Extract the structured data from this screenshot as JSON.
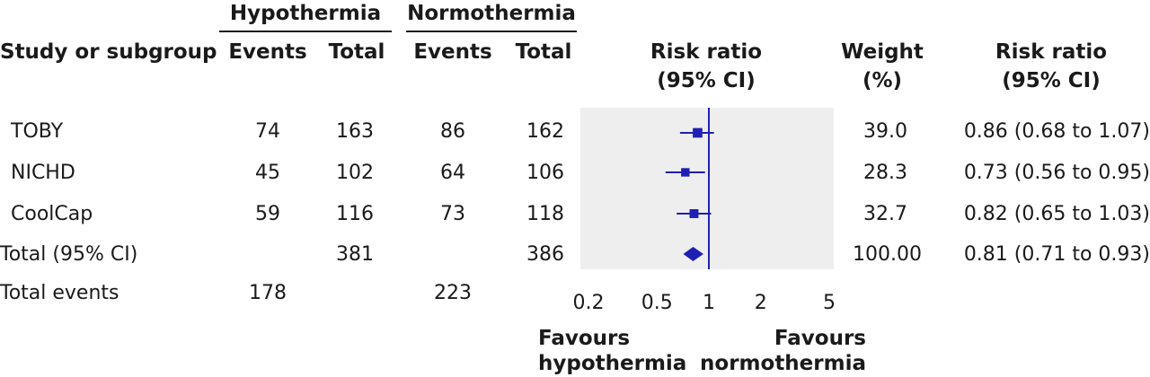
{
  "headers": {
    "group1": "Hypothermia",
    "group2": "Normothermia",
    "study": "Study or subgroup",
    "events1": "Events",
    "total1": "Total",
    "events2": "Events",
    "total2": "Total",
    "rr_plot_line1": "Risk ratio",
    "rr_plot_line2": "(95% CI)",
    "weight_line1": "Weight",
    "weight_line2": "(%)",
    "rr_line1": "Risk ratio",
    "rr_line2": "(95% CI)"
  },
  "rows": [
    {
      "study": "TOBY",
      "events1": "74",
      "total1": "163",
      "events2": "86",
      "total2": "162",
      "weight": "39.0",
      "rr": "0.86 (0.68 to 1.07)"
    },
    {
      "study": "NICHD",
      "events1": "45",
      "total1": "102",
      "events2": "64",
      "total2": "106",
      "weight": "28.3",
      "rr": "0.73 (0.56 to 0.95)"
    },
    {
      "study": "CoolCap",
      "events1": "59",
      "total1": "116",
      "events2": "73",
      "total2": "118",
      "weight": "32.7",
      "rr": "0.82 (0.65 to 1.03)"
    }
  ],
  "total_row": {
    "label": "Total (95% CI)",
    "total1": "381",
    "total2": "386",
    "weight": "100.00",
    "rr": "0.81 (0.71 to 0.93)"
  },
  "events_row": {
    "label": "Total events",
    "events1": "178",
    "events2": "223"
  },
  "favours": {
    "left_line1": "Favours",
    "left_line2": "hypothermia",
    "right_line1": "Favours",
    "right_line2": "normothermia"
  },
  "colors": {
    "marker": "#1f1fb4",
    "panel": "#eeeeee",
    "text": "#1a1a1a"
  },
  "chart_data": {
    "type": "forest",
    "scale": "log",
    "xlim": [
      0.2,
      5
    ],
    "null_line": 1,
    "ticks": [
      0.2,
      0.5,
      1,
      2,
      5
    ],
    "tick_labels": [
      "0.2",
      "0.5",
      "1",
      "2",
      "5"
    ],
    "studies": [
      {
        "name": "TOBY",
        "rr": 0.86,
        "lower": 0.68,
        "upper": 1.07,
        "weight": 39.0
      },
      {
        "name": "NICHD",
        "rr": 0.73,
        "lower": 0.56,
        "upper": 0.95,
        "weight": 28.3
      },
      {
        "name": "CoolCap",
        "rr": 0.82,
        "lower": 0.65,
        "upper": 1.03,
        "weight": 32.7
      }
    ],
    "pooled": {
      "name": "Total (95% CI)",
      "rr": 0.81,
      "lower": 0.71,
      "upper": 0.93
    }
  }
}
